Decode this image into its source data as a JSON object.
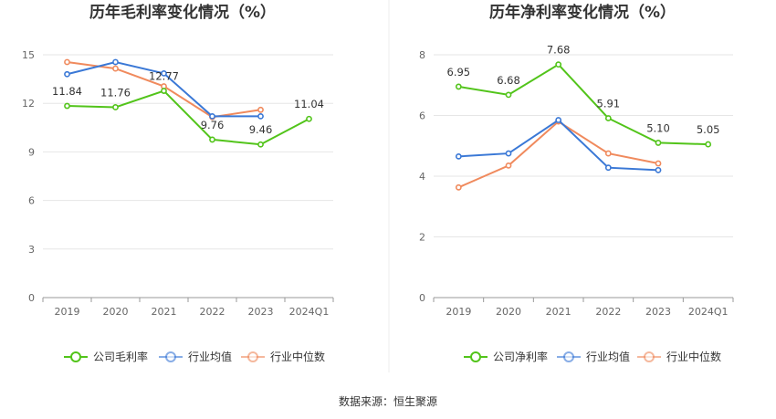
{
  "source": "数据来源：恒生聚源",
  "colors": {
    "company": "#52c41a",
    "industry_avg": "#3a78d6",
    "industry_median": "#f08a5d"
  },
  "chart_data": [
    {
      "type": "line",
      "title": "历年毛利率变化情况（%）",
      "categories": [
        "2019",
        "2020",
        "2021",
        "2022",
        "2023",
        "2024Q1"
      ],
      "ylim": [
        0,
        15
      ],
      "yticks": [
        0,
        3,
        6,
        9,
        12,
        15
      ],
      "grid": true,
      "legend": "bottom",
      "series": [
        {
          "name": "公司毛利率",
          "key": "company",
          "values": [
            11.84,
            11.76,
            12.77,
            9.76,
            9.46,
            11.04
          ],
          "labels": [
            "11.84",
            "11.76",
            "12.77",
            "9.76",
            "9.46",
            "11.04"
          ]
        },
        {
          "name": "行业均值",
          "key": "industry_avg",
          "values": [
            13.8,
            14.55,
            13.85,
            11.2,
            11.2,
            null
          ]
        },
        {
          "name": "行业中位数",
          "key": "industry_median",
          "values": [
            14.55,
            14.15,
            13.05,
            11.15,
            11.6,
            null
          ]
        }
      ]
    },
    {
      "type": "line",
      "title": "历年净利率变化情况（%）",
      "categories": [
        "2019",
        "2020",
        "2021",
        "2022",
        "2023",
        "2024Q1"
      ],
      "ylim": [
        0,
        8
      ],
      "yticks": [
        0,
        2,
        4,
        6,
        8
      ],
      "grid": true,
      "legend": "bottom",
      "series": [
        {
          "name": "公司净利率",
          "key": "company",
          "values": [
            6.95,
            6.68,
            7.68,
            5.91,
            5.1,
            5.05
          ],
          "labels": [
            "6.95",
            "6.68",
            "7.68",
            "5.91",
            "5.10",
            "5.05"
          ]
        },
        {
          "name": "行业均值",
          "key": "industry_avg",
          "values": [
            4.65,
            4.75,
            5.85,
            4.28,
            4.2,
            null
          ]
        },
        {
          "name": "行业中位数",
          "key": "industry_median",
          "values": [
            3.63,
            4.35,
            5.8,
            4.75,
            4.42,
            null
          ]
        }
      ]
    }
  ]
}
